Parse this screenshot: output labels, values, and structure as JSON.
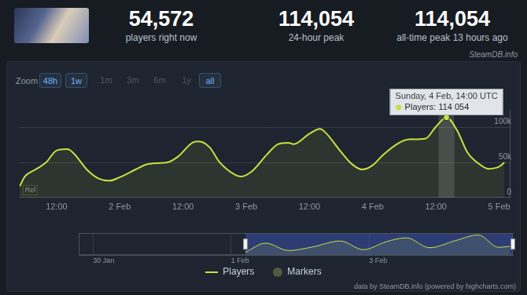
{
  "header": {
    "stats": [
      {
        "value": "54,572",
        "label": "players right now"
      },
      {
        "value": "114,054",
        "label": "24-hour peak"
      },
      {
        "value": "114,054",
        "label": "all-time peak 13 hours ago"
      }
    ],
    "source": "SteamDB.info"
  },
  "zoom": {
    "label": "Zoom",
    "buttons": [
      {
        "label": "48h",
        "enabled": true
      },
      {
        "label": "1w",
        "enabled": true
      },
      {
        "label": "1m",
        "enabled": false
      },
      {
        "label": "3m",
        "enabled": false
      },
      {
        "label": "6m",
        "enabled": false
      },
      {
        "label": "1y",
        "enabled": false
      },
      {
        "label": "all",
        "enabled": true
      }
    ]
  },
  "chart_data": [
    {
      "type": "area",
      "x": [
        5,
        6,
        8,
        10,
        12,
        14,
        15,
        18,
        20,
        22,
        24,
        27,
        29,
        31,
        33,
        35,
        38,
        39,
        41,
        43,
        46,
        47,
        49,
        52,
        54,
        56,
        57,
        60,
        62,
        63,
        66,
        68,
        70,
        72,
        74,
        77,
        79,
        82,
        84,
        86,
        88,
        90,
        92,
        94,
        96,
        97
      ],
      "series": [
        {
          "name": "Players",
          "color": "#c8e23e",
          "values": [
            16000,
            30000,
            40000,
            50000,
            67000,
            69000,
            65000,
            38000,
            27000,
            24000,
            29000,
            40000,
            47000,
            49000,
            50000,
            58000,
            79000,
            80000,
            72000,
            50000,
            32000,
            30000,
            37000,
            62000,
            76000,
            78000,
            76000,
            91000,
            98000,
            93000,
            65000,
            48000,
            40000,
            46000,
            61000,
            78000,
            83000,
            84000,
            101000,
            114054,
            96000,
            64000,
            49000,
            41000,
            44000,
            50000
          ]
        },
        {
          "name": "Markers",
          "color": "#4d5c3d",
          "type": "flag",
          "x": [
            6
          ],
          "labels": [
            "Rel"
          ]
        }
      ],
      "xlim": [
        5,
        98
      ],
      "xticks": [
        {
          "value": 12,
          "label": "12:00"
        },
        {
          "value": 24,
          "label": "2 Feb"
        },
        {
          "value": 36,
          "label": "12:00"
        },
        {
          "value": 48,
          "label": "3 Feb"
        },
        {
          "value": 60,
          "label": "12:00"
        },
        {
          "value": 72,
          "label": "4 Feb"
        },
        {
          "value": 84,
          "label": "12:00"
        },
        {
          "value": 96,
          "label": "5 Feb"
        }
      ],
      "ylim": [
        0,
        125000
      ],
      "yticks": [
        0,
        {
          "value": 50000,
          "label": "50k"
        },
        {
          "value": 100000,
          "label": "100k"
        }
      ],
      "grid": true,
      "legend": "bottom",
      "annotations": [
        {
          "x": 86,
          "title": "Sunday, 4 Feb, 14:00 UTC",
          "text": "Players: 114 054"
        }
      ]
    },
    {
      "type": "area",
      "x": [
        5,
        12,
        20,
        28,
        38,
        46,
        54,
        61,
        69,
        78,
        86,
        93,
        97
      ],
      "series": [
        {
          "color": "#c8e23e",
          "values": [
            16000,
            68000,
            26000,
            45000,
            80000,
            31000,
            76000,
            98000,
            42000,
            82000,
            114054,
            44000,
            50000
          ]
        }
      ],
      "xlim": [
        -53,
        98
      ],
      "xticks": [
        {
          "value": -48,
          "label": "30 Jan"
        },
        {
          "value": 0,
          "label": "1 Feb"
        },
        {
          "value": 48,
          "label": "3 Feb"
        }
      ],
      "ylim": [
        0,
        125000
      ],
      "tick_labels": "x",
      "grid": true
    }
  ],
  "footer": "data by SteamDB.info (powered by highcharts.com)"
}
